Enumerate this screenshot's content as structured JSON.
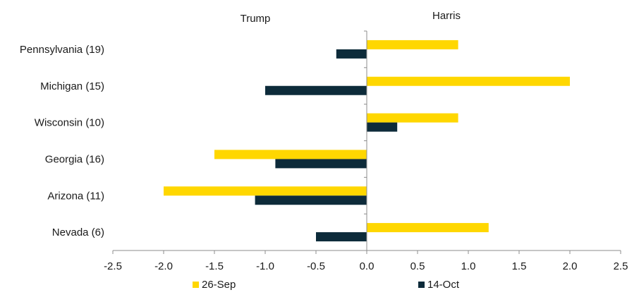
{
  "chart_data": {
    "type": "bar",
    "orientation": "horizontal",
    "categories": [
      "Pennsylvania (19)",
      "Michigan (15)",
      "Wisconsin (10)",
      "Georgia (16)",
      "Arizona (11)",
      "Nevada (6)"
    ],
    "series": [
      {
        "name": "26-Sep",
        "color": "#FFD700",
        "values": [
          0.9,
          2.0,
          0.9,
          -1.5,
          -2.0,
          1.2
        ]
      },
      {
        "name": "14-Oct",
        "color": "#0D2B3A",
        "values": [
          -0.3,
          -1.0,
          0.3,
          -0.9,
          -1.1,
          -0.5
        ]
      }
    ],
    "annotations": {
      "left": "Trump",
      "right": "Harris"
    },
    "xlim": [
      -2.5,
      2.5
    ],
    "xticks": [
      "-2.5",
      "-2.0",
      "-1.5",
      "-1.0",
      "-0.5",
      "0.0",
      "0.5",
      "1.0",
      "1.5",
      "2.0",
      "2.5"
    ],
    "grid": false,
    "legend_position": "bottom"
  }
}
